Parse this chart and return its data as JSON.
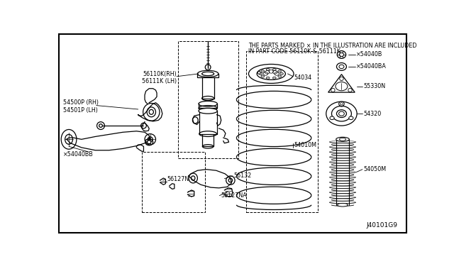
{
  "bg_color": "#f0f0f0",
  "border_color": "#000000",
  "text_color": "#000000",
  "header_line1": "THE PARTS MARKED × IN THE ILLUSTRATION ARE INCLUDED",
  "header_line2": "IN PART CODE 56110K & 56111K",
  "diagram_id": "J40101G9",
  "label_56110K": "56110K(RH)\n56111K (LH)",
  "label_54500P": "54500P (RH)\n54501P (LH)",
  "label_54040BB": "×54040BB",
  "label_56127N": "56127N",
  "label_56132": "56132",
  "label_56127NA": "56127NA",
  "label_54034": "54034",
  "label_54010M": "54010M",
  "label_54040B": "×54040B",
  "label_54040BA": "×54040BA",
  "label_55330N": "55330N",
  "label_54320": "54320",
  "label_54050M": "54050M"
}
